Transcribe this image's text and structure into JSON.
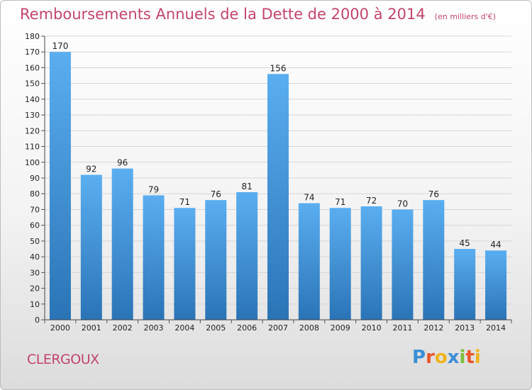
{
  "header": {
    "title": "Remboursements Annuels de la Dette de 2000 à 2014",
    "subtitle": "(en milliers d'€)"
  },
  "footer": {
    "town": "CLERGOUX",
    "logo": {
      "text": "Proxiti",
      "letters": [
        {
          "ch": "P",
          "color": "#3a8fd6"
        },
        {
          "ch": "r",
          "color": "#e8562a"
        },
        {
          "ch": "o",
          "color": "#f0b31b"
        },
        {
          "ch": "x",
          "color": "#3a8fd6"
        },
        {
          "ch": "i",
          "color": "#7bbf3a"
        },
        {
          "ch": "t",
          "color": "#e8562a"
        },
        {
          "ch": "i",
          "color": "#f0b31b"
        }
      ]
    }
  },
  "colors": {
    "bar_top": "#5aaef0",
    "bar_bottom": "#2a74b6",
    "title": "#c2456b"
  },
  "chart_data": {
    "type": "bar",
    "categories": [
      "2000",
      "2001",
      "2002",
      "2003",
      "2004",
      "2005",
      "2006",
      "2007",
      "2008",
      "2009",
      "2010",
      "2011",
      "2012",
      "2013",
      "2014"
    ],
    "values": [
      170,
      92,
      96,
      79,
      71,
      76,
      81,
      156,
      74,
      71,
      72,
      70,
      76,
      45,
      44
    ],
    "ylim": [
      0,
      180
    ],
    "yticks": [
      0,
      10,
      20,
      30,
      40,
      50,
      60,
      70,
      80,
      90,
      100,
      110,
      120,
      130,
      140,
      150,
      160,
      170,
      180
    ],
    "grid": true,
    "data_labels": true
  }
}
